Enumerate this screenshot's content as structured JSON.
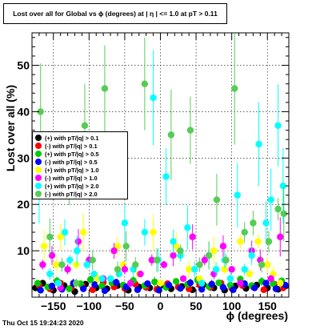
{
  "title": "Lost over all for Global vs ϕ (degrees) at | η | <= 1.0 at pT > 0.11",
  "timestamp": "Thu Oct 15 19:24:23 2020",
  "chart_data": {
    "type": "scatter",
    "xlabel": "ϕ (degrees)",
    "ylabel": "Lost over all (%)",
    "xlim": [
      -180,
      180
    ],
    "ylim": [
      0,
      57
    ],
    "xticks": [
      -150,
      -100,
      -50,
      0,
      50,
      100,
      150
    ],
    "xtick_labels": [
      "−150",
      "−100",
      "−50",
      "0",
      "50",
      "100",
      "150"
    ],
    "yticks": [
      10,
      20,
      30,
      40,
      50
    ],
    "ytick_labels": [
      "10",
      "20",
      "30",
      "40",
      "50"
    ],
    "grid": true,
    "legend_position": "left-middle",
    "series": [
      {
        "name": "(+) with pT/|q| > 0.1",
        "color": "#000000",
        "points": [
          [
            -175,
            2
          ],
          [
            -165,
            3
          ],
          [
            -150,
            1.5
          ],
          [
            -135,
            2.5
          ],
          [
            -120,
            1.2
          ],
          [
            -105,
            2.8
          ],
          [
            -90,
            2
          ],
          [
            -75,
            1.8
          ],
          [
            -60,
            2.5
          ],
          [
            -45,
            1.5
          ],
          [
            -30,
            2.2
          ],
          [
            -15,
            2
          ],
          [
            0,
            2.5
          ],
          [
            15,
            1.8
          ],
          [
            30,
            2.3
          ],
          [
            45,
            1.6
          ],
          [
            60,
            2.7
          ],
          [
            75,
            2
          ],
          [
            90,
            1.5
          ],
          [
            105,
            2.4
          ],
          [
            120,
            1.9
          ],
          [
            135,
            2.6
          ],
          [
            150,
            2
          ],
          [
            165,
            1.7
          ],
          [
            175,
            2.4
          ]
        ]
      },
      {
        "name": "(-) with pT/|q| > 0.1",
        "color": "#ff0000",
        "points": [
          [
            -170,
            2.5
          ],
          [
            -155,
            1.8
          ],
          [
            -140,
            3
          ],
          [
            -125,
            2
          ],
          [
            -110,
            2.6
          ],
          [
            -95,
            1.6
          ],
          [
            -80,
            3.2
          ],
          [
            -65,
            2.2
          ],
          [
            -50,
            1.9
          ],
          [
            -35,
            2.8
          ],
          [
            -20,
            2.1
          ],
          [
            -5,
            1.7
          ],
          [
            10,
            2.9
          ],
          [
            25,
            2.2
          ],
          [
            40,
            1.8
          ],
          [
            55,
            2.6
          ],
          [
            70,
            2.1
          ],
          [
            85,
            3
          ],
          [
            100,
            1.9
          ],
          [
            115,
            2.5
          ],
          [
            130,
            2.2
          ],
          [
            145,
            1.6
          ],
          [
            160,
            2.8
          ],
          [
            172,
            2
          ]
        ]
      },
      {
        "name": "(+) with pT/|q| > 0.5",
        "color": "#00cc00",
        "points": [
          [
            -172,
            3
          ],
          [
            -158,
            2.2
          ],
          [
            -145,
            3.5
          ],
          [
            -128,
            1.8
          ],
          [
            -112,
            2.9
          ],
          [
            -98,
            3.8
          ],
          [
            -82,
            2.4
          ],
          [
            -68,
            3.1
          ],
          [
            -52,
            2.6
          ],
          [
            -38,
            3.6
          ],
          [
            -22,
            2.5
          ],
          [
            -8,
            3.3
          ],
          [
            8,
            2.1
          ],
          [
            22,
            3.4
          ],
          [
            38,
            2.8
          ],
          [
            52,
            3.7
          ],
          [
            68,
            2.3
          ],
          [
            82,
            3.1
          ],
          [
            98,
            2.6
          ],
          [
            112,
            3.9
          ],
          [
            128,
            2.5
          ],
          [
            142,
            3.4
          ],
          [
            158,
            2.9
          ],
          [
            170,
            3.5
          ]
        ]
      },
      {
        "name": "(-) with pT/|q| > 0.5",
        "color": "#0000ff",
        "points": [
          [
            -168,
            1.5
          ],
          [
            -152,
            2.4
          ],
          [
            -138,
            1.7
          ],
          [
            -122,
            3
          ],
          [
            -108,
            1.8
          ],
          [
            -92,
            2.7
          ],
          [
            -78,
            1.4
          ],
          [
            -62,
            3.2
          ],
          [
            -48,
            2.2
          ],
          [
            -32,
            1.6
          ],
          [
            -18,
            2.9
          ],
          [
            -2,
            1.5
          ],
          [
            12,
            2.6
          ],
          [
            28,
            1.9
          ],
          [
            42,
            3.1
          ],
          [
            58,
            1.7
          ],
          [
            72,
            2.8
          ],
          [
            88,
            2.1
          ],
          [
            102,
            1.6
          ],
          [
            118,
            2.9
          ],
          [
            132,
            2
          ],
          [
            148,
            3
          ],
          [
            162,
            1.8
          ],
          [
            175,
            2.6
          ]
        ]
      },
      {
        "name": "(+) with pT/|q| > 1.0",
        "color": "#ffff00",
        "points": [
          [
            -163,
            11
          ],
          [
            -146,
            7
          ],
          [
            -140,
            13
          ],
          [
            -118,
            7
          ],
          [
            -108,
            14
          ],
          [
            -88,
            4
          ],
          [
            -60,
            11
          ],
          [
            -52,
            7
          ],
          [
            -30,
            5
          ],
          [
            -10,
            14
          ],
          [
            0,
            3
          ],
          [
            22,
            11
          ],
          [
            40,
            6
          ],
          [
            55,
            4
          ],
          [
            75,
            10
          ],
          [
            90,
            6
          ],
          [
            112,
            12
          ],
          [
            125,
            5
          ],
          [
            137,
            12
          ],
          [
            150,
            7
          ],
          [
            158,
            5
          ],
          [
            168,
            3
          ]
        ]
      },
      {
        "name": "(-) with pT/|q| > 1.0",
        "color": "#ff00ff",
        "points": [
          [
            -165,
            7
          ],
          [
            -152,
            9
          ],
          [
            -140,
            2
          ],
          [
            -130,
            6
          ],
          [
            -115,
            12
          ],
          [
            -100,
            8
          ],
          [
            -80,
            4
          ],
          [
            -65,
            10
          ],
          [
            -50,
            6
          ],
          [
            -42,
            3
          ],
          [
            -28,
            5
          ],
          [
            -12,
            8
          ],
          [
            5,
            7
          ],
          [
            18,
            9
          ],
          [
            32,
            4
          ],
          [
            45,
            13
          ],
          [
            62,
            8
          ],
          [
            75,
            5
          ],
          [
            88,
            11
          ],
          [
            100,
            6
          ],
          [
            112,
            3
          ],
          [
            128,
            10
          ],
          [
            140,
            8
          ],
          [
            155,
            4
          ],
          [
            168,
            13
          ]
        ]
      },
      {
        "name": "(+) with pT/|q| > 2.0",
        "color": "#00ffff",
        "points": [
          [
            -170,
            22
          ],
          [
            -155,
            5
          ],
          [
            -143,
            3
          ],
          [
            -134,
            14
          ],
          [
            -127,
            8
          ],
          [
            -117,
            10
          ],
          [
            -103,
            7
          ],
          [
            -93,
            5
          ],
          [
            -82,
            4
          ],
          [
            -70,
            4
          ],
          [
            -58,
            5
          ],
          [
            -50,
            16
          ],
          [
            -38,
            6
          ],
          [
            -22,
            14
          ],
          [
            -10,
            43
          ],
          [
            -3,
            8
          ],
          [
            8,
            26
          ],
          [
            18,
            12
          ],
          [
            28,
            9
          ],
          [
            38,
            15
          ],
          [
            48,
            6
          ],
          [
            58,
            3
          ],
          [
            68,
            9
          ],
          [
            78,
            6
          ],
          [
            90,
            8
          ],
          [
            98,
            4
          ],
          [
            108,
            22
          ],
          [
            118,
            6
          ],
          [
            128,
            9
          ],
          [
            138,
            33
          ],
          [
            148,
            16
          ],
          [
            155,
            21
          ],
          [
            165,
            37
          ],
          [
            172,
            24
          ]
        ]
      },
      {
        "name": "(-) with pT/|q| > 2.0",
        "color": "#55cc55",
        "points": [
          [
            -168,
            40
          ],
          [
            -155,
            13
          ],
          [
            -138,
            7
          ],
          [
            -128,
            23
          ],
          [
            -118,
            3
          ],
          [
            -106,
            37
          ],
          [
            -95,
            8
          ],
          [
            -78,
            45
          ],
          [
            -60,
            6
          ],
          [
            -48,
            11
          ],
          [
            -35,
            7
          ],
          [
            -22,
            46
          ],
          [
            -5,
            8
          ],
          [
            15,
            35
          ],
          [
            28,
            10
          ],
          [
            42,
            36
          ],
          [
            55,
            7
          ],
          [
            68,
            9
          ],
          [
            79,
            21
          ],
          [
            92,
            8
          ],
          [
            104,
            45
          ],
          [
            118,
            14
          ],
          [
            130,
            16
          ],
          [
            142,
            7
          ],
          [
            152,
            12
          ],
          [
            165,
            19
          ],
          [
            173,
            18
          ]
        ]
      }
    ]
  }
}
